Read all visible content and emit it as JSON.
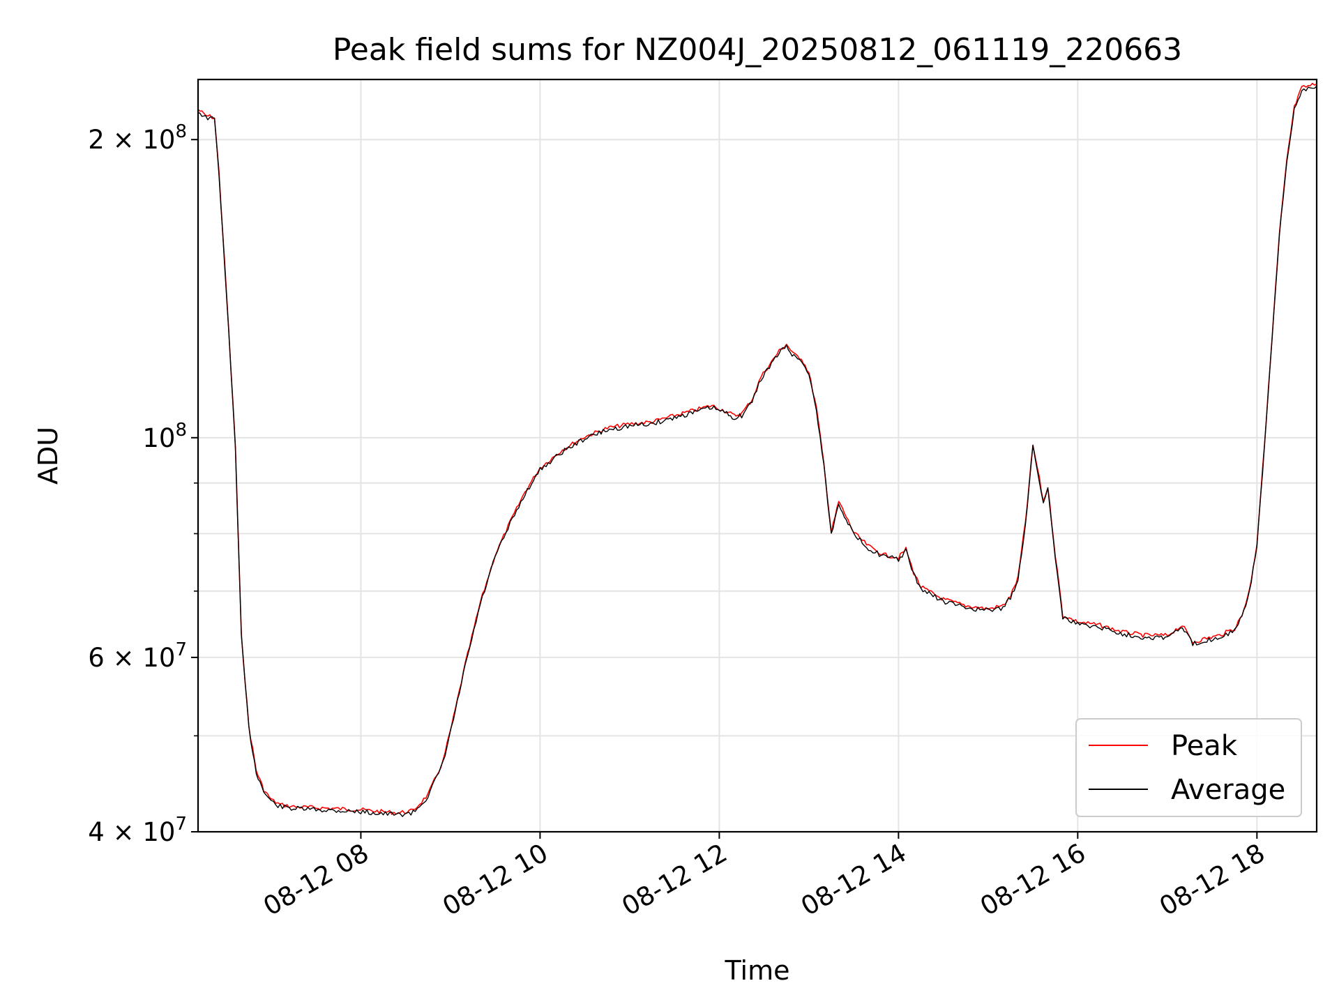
{
  "chart_data": {
    "type": "line",
    "title": "Peak field sums for NZ004J_20250812_061119_220663",
    "xlabel": "Time",
    "ylabel": "ADU",
    "y_scale": "log",
    "ylim": [
      40000000,
      230000000
    ],
    "xlim": [
      "2025-08-12 06:11",
      "2025-08-12 18:40"
    ],
    "grid": true,
    "legend_position": "lower-right",
    "x_ticks": [
      {
        "value": "2025-08-12 08:00",
        "label": "08-12 08"
      },
      {
        "value": "2025-08-12 10:00",
        "label": "08-12 10"
      },
      {
        "value": "2025-08-12 12:00",
        "label": "08-12 12"
      },
      {
        "value": "2025-08-12 14:00",
        "label": "08-12 14"
      },
      {
        "value": "2025-08-12 16:00",
        "label": "08-12 16"
      },
      {
        "value": "2025-08-12 18:00",
        "label": "08-12 18"
      }
    ],
    "y_ticks": [
      {
        "value": 40000000,
        "base": "4 × 10",
        "exp": "7"
      },
      {
        "value": 60000000,
        "base": "6 × 10",
        "exp": "7"
      },
      {
        "value": 100000000,
        "base": "10",
        "exp": "8"
      },
      {
        "value": 200000000,
        "base": "2 × 10",
        "exp": "8"
      }
    ],
    "y_minor_ticks": [
      50000000,
      70000000,
      80000000,
      90000000
    ],
    "series": [
      {
        "name": "Peak",
        "color": "#ff0000"
      },
      {
        "name": "Average",
        "color": "#000000"
      }
    ],
    "x": [
      "2025-08-12 06:11",
      "2025-08-12 06:16",
      "2025-08-12 06:22",
      "2025-08-12 06:25",
      "2025-08-12 06:30",
      "2025-08-12 06:36",
      "2025-08-12 06:40",
      "2025-08-12 06:45",
      "2025-08-12 06:50",
      "2025-08-12 06:55",
      "2025-08-12 07:00",
      "2025-08-12 07:06",
      "2025-08-12 07:15",
      "2025-08-12 07:30",
      "2025-08-12 07:45",
      "2025-08-12 08:00",
      "2025-08-12 08:15",
      "2025-08-12 08:25",
      "2025-08-12 08:35",
      "2025-08-12 08:45",
      "2025-08-12 08:55",
      "2025-08-12 09:02",
      "2025-08-12 09:10",
      "2025-08-12 09:20",
      "2025-08-12 09:30",
      "2025-08-12 09:40",
      "2025-08-12 09:50",
      "2025-08-12 10:00",
      "2025-08-12 10:15",
      "2025-08-12 10:30",
      "2025-08-12 10:45",
      "2025-08-12 11:00",
      "2025-08-12 11:15",
      "2025-08-12 11:30",
      "2025-08-12 11:45",
      "2025-08-12 11:55",
      "2025-08-12 12:05",
      "2025-08-12 12:10",
      "2025-08-12 12:15",
      "2025-08-12 12:22",
      "2025-08-12 12:28",
      "2025-08-12 12:35",
      "2025-08-12 12:40",
      "2025-08-12 12:45",
      "2025-08-12 12:50",
      "2025-08-12 12:55",
      "2025-08-12 13:00",
      "2025-08-12 13:05",
      "2025-08-12 13:10",
      "2025-08-12 13:15",
      "2025-08-12 13:20",
      "2025-08-12 13:25",
      "2025-08-12 13:30",
      "2025-08-12 13:40",
      "2025-08-12 13:50",
      "2025-08-12 14:00",
      "2025-08-12 14:05",
      "2025-08-12 14:10",
      "2025-08-12 14:15",
      "2025-08-12 14:30",
      "2025-08-12 14:45",
      "2025-08-12 15:00",
      "2025-08-12 15:10",
      "2025-08-12 15:15",
      "2025-08-12 15:20",
      "2025-08-12 15:25",
      "2025-08-12 15:30",
      "2025-08-12 15:33",
      "2025-08-12 15:37",
      "2025-08-12 15:40",
      "2025-08-12 15:45",
      "2025-08-12 15:50",
      "2025-08-12 16:00",
      "2025-08-12 16:15",
      "2025-08-12 16:30",
      "2025-08-12 16:45",
      "2025-08-12 17:00",
      "2025-08-12 17:10",
      "2025-08-12 17:17",
      "2025-08-12 17:25",
      "2025-08-12 17:35",
      "2025-08-12 17:45",
      "2025-08-12 17:50",
      "2025-08-12 17:55",
      "2025-08-12 18:00",
      "2025-08-12 18:05",
      "2025-08-12 18:10",
      "2025-08-12 18:15",
      "2025-08-12 18:20",
      "2025-08-12 18:25",
      "2025-08-12 18:30",
      "2025-08-12 18:40"
    ],
    "values": [
      214000000,
      211000000,
      210000000,
      185000000,
      140000000,
      98000000,
      63000000,
      51000000,
      46000000,
      44000000,
      43000000,
      42500000,
      42300000,
      42200000,
      42100000,
      42000000,
      41800000,
      41700000,
      41900000,
      43500000,
      47000000,
      52000000,
      59000000,
      68000000,
      76000000,
      82000000,
      88000000,
      93000000,
      97000000,
      100000000,
      102000000,
      103000000,
      103500000,
      105000000,
      106500000,
      107500000,
      106000000,
      105000000,
      105500000,
      109000000,
      115000000,
      119000000,
      122000000,
      124000000,
      121000000,
      120000000,
      116000000,
      107000000,
      94000000,
      80000000,
      86000000,
      83000000,
      80000000,
      77500000,
      76000000,
      75500000,
      77000000,
      73000000,
      70500000,
      68500000,
      67500000,
      67000000,
      67500000,
      69000000,
      72000000,
      82000000,
      98000000,
      93000000,
      86000000,
      89000000,
      76000000,
      66000000,
      65000000,
      64500000,
      63500000,
      63000000,
      63000000,
      64500000,
      62000000,
      62500000,
      63000000,
      64000000,
      66000000,
      70000000,
      78000000,
      98000000,
      125000000,
      160000000,
      190000000,
      215000000,
      225000000,
      227000000
    ]
  }
}
